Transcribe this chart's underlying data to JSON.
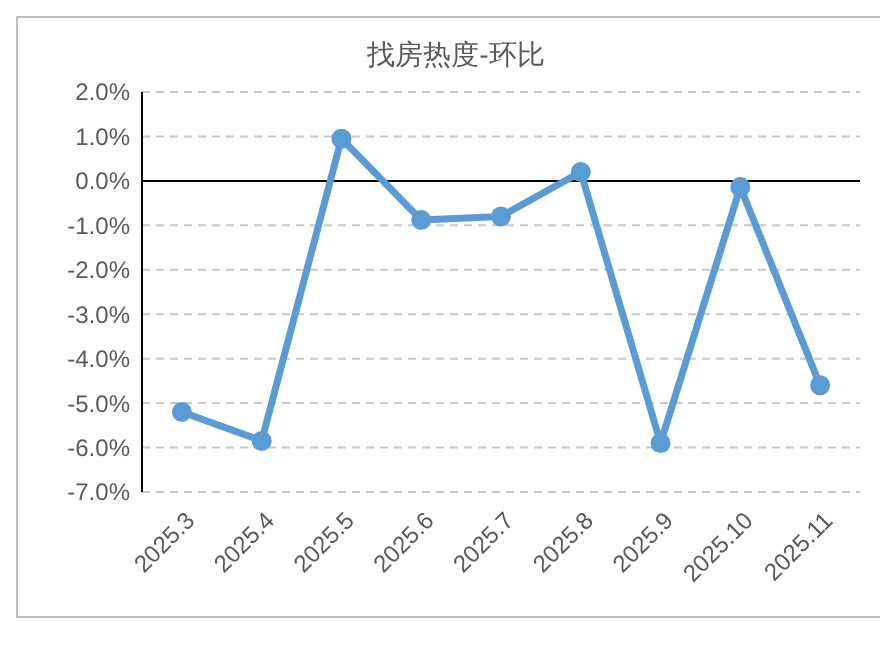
{
  "chart_data": {
    "type": "line",
    "title": "找房热度-环比",
    "categories": [
      "2025.3",
      "2025.4",
      "2025.5",
      "2025.6",
      "2025.7",
      "2025.8",
      "2025.9",
      "2025.10",
      "2025.11"
    ],
    "series": [
      {
        "color": "#5b9bd5",
        "values": [
          -5.2,
          -5.85,
          0.95,
          -0.88,
          -0.8,
          0.2,
          -5.9,
          -0.14,
          -4.6
        ]
      }
    ],
    "ylim": [
      -7,
      2
    ],
    "yticks": [
      {
        "value": 2,
        "label": "2.0%"
      },
      {
        "value": 1,
        "label": "1.0%"
      },
      {
        "value": 0,
        "label": "0.0%"
      },
      {
        "value": -1,
        "label": "-1.0%"
      },
      {
        "value": -2,
        "label": "-2.0%"
      },
      {
        "value": -3,
        "label": "-3.0%"
      },
      {
        "value": -4,
        "label": "-4.0%"
      },
      {
        "value": -5,
        "label": "-5.0%"
      },
      {
        "value": -6,
        "label": "-6.0%"
      },
      {
        "value": -7,
        "label": "-7.0%"
      }
    ],
    "grid": "y",
    "marker": "circle",
    "line_style": "solid"
  }
}
